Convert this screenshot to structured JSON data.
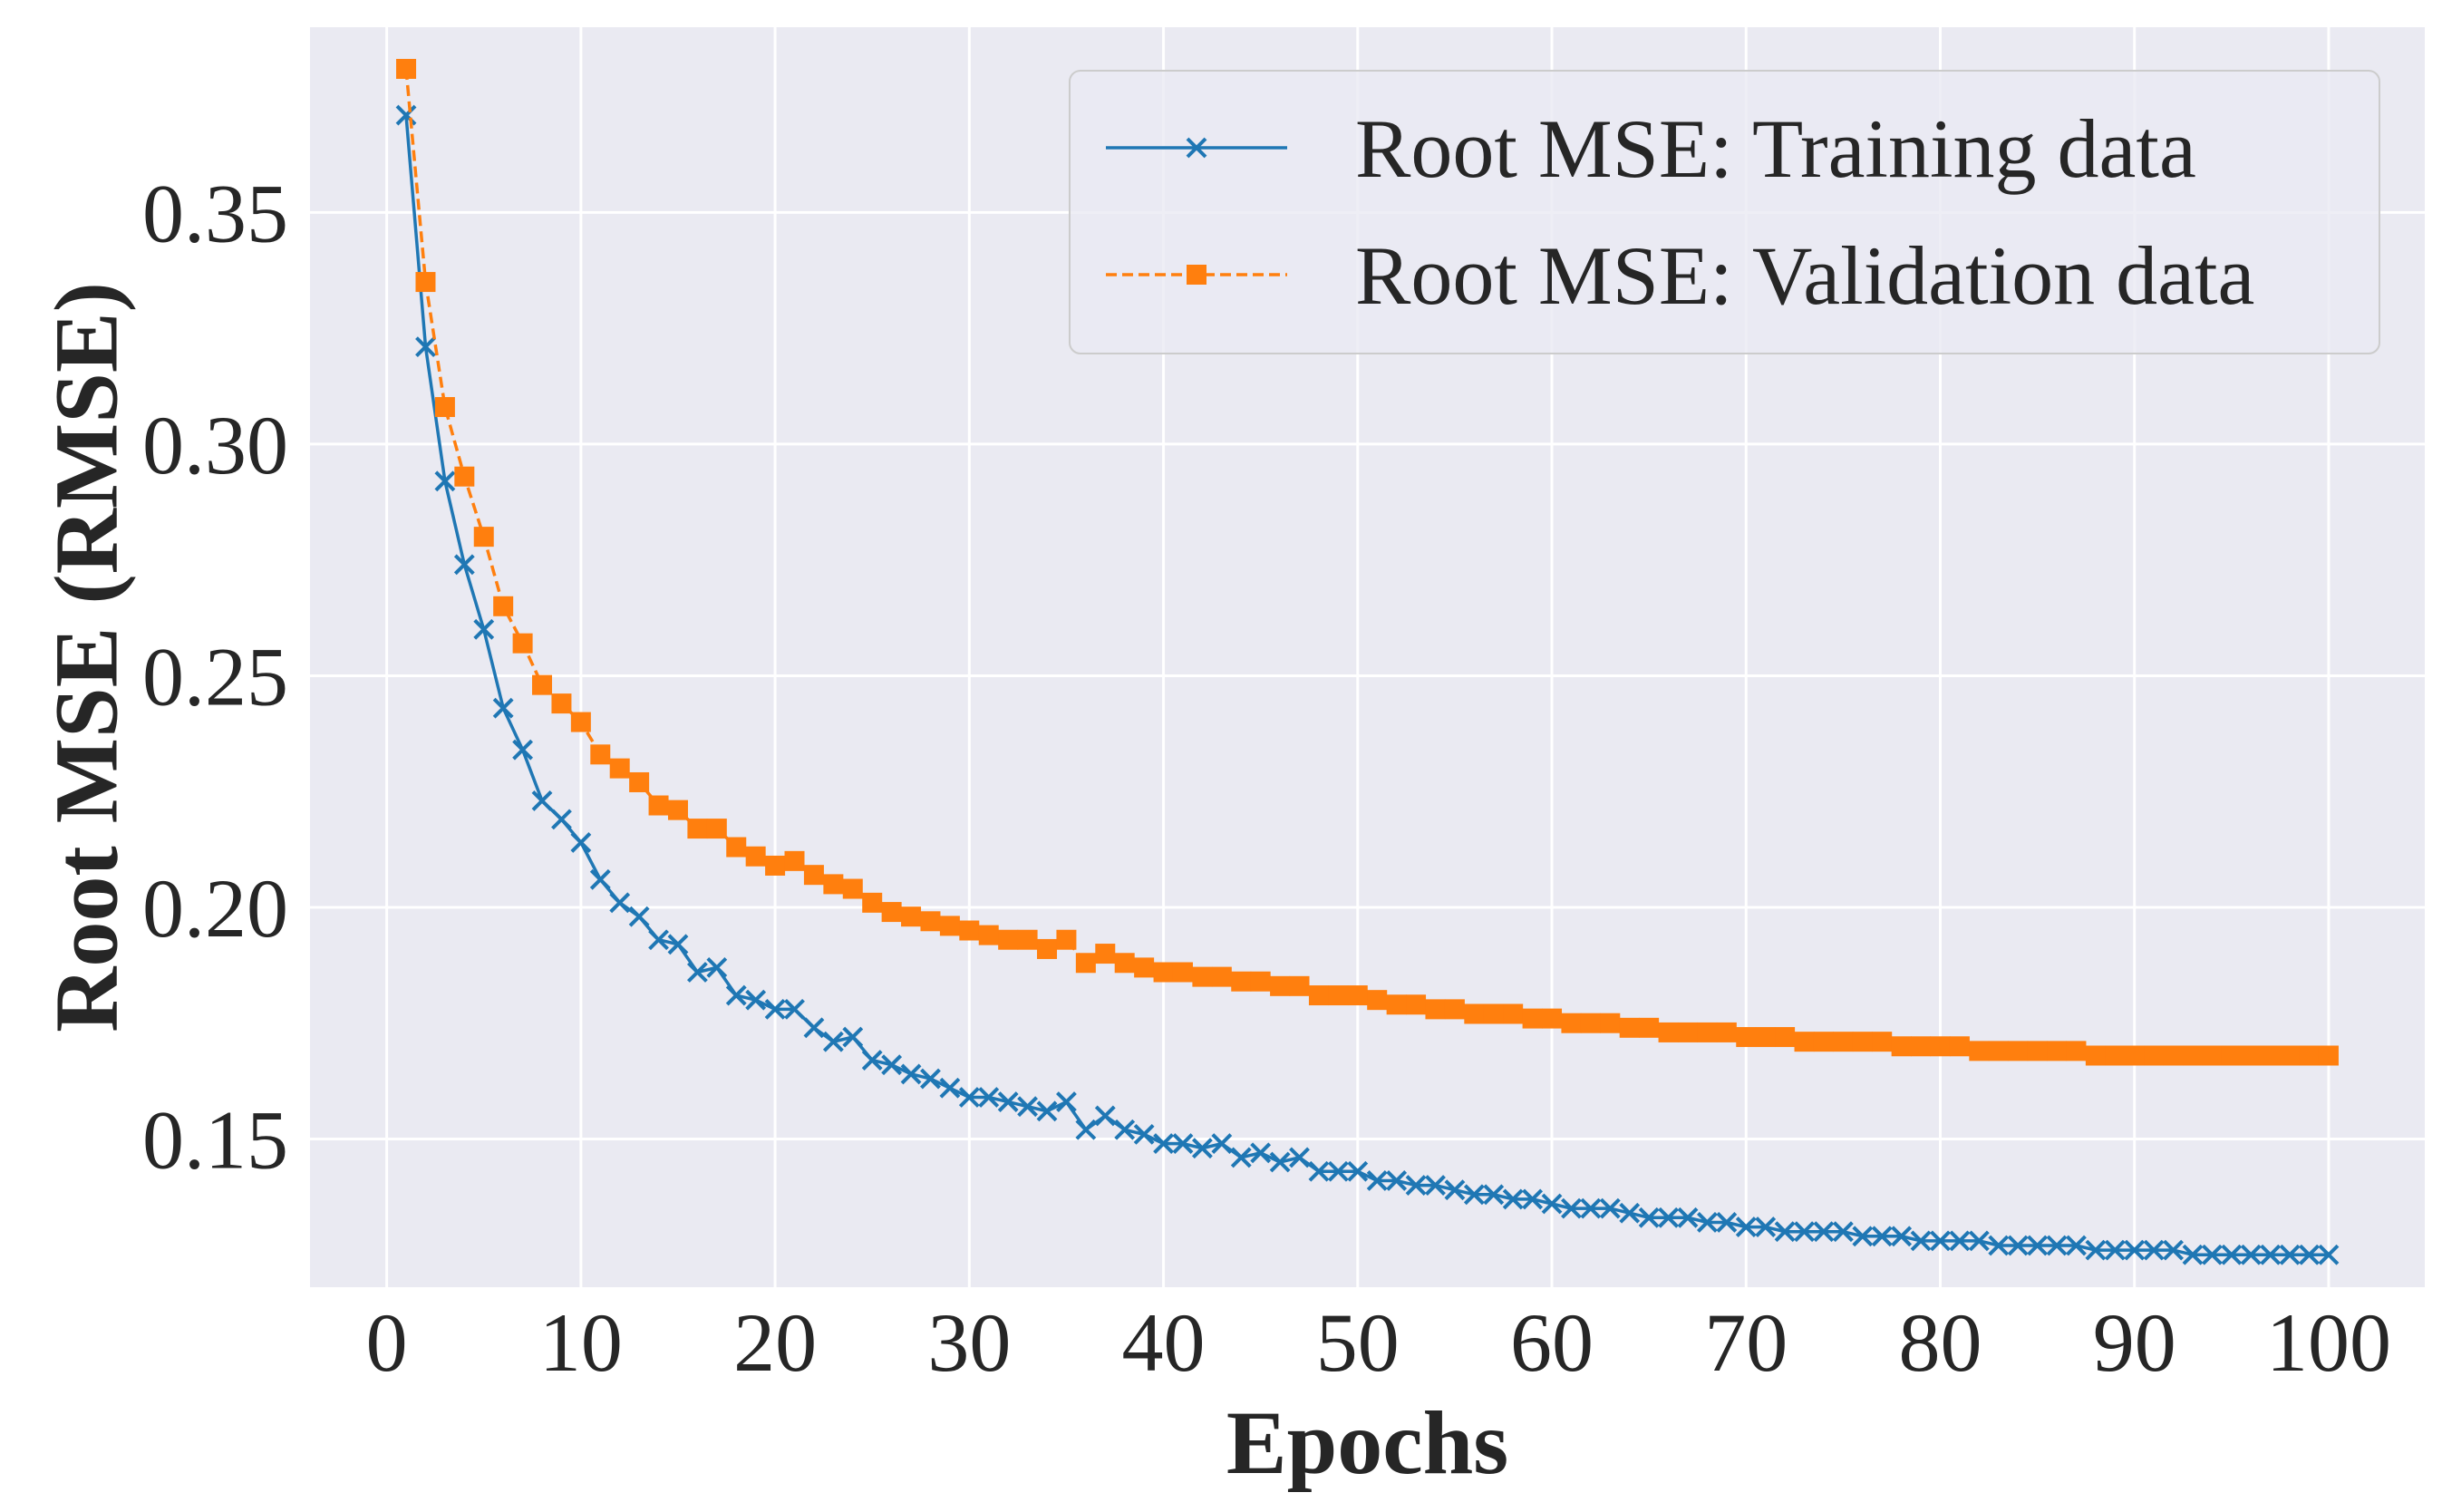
{
  "chart_data": {
    "type": "line",
    "title": "",
    "xlabel": "Epochs",
    "ylabel": "Root MSE (RMSE)",
    "xlim": [
      -3.95,
      104.95
    ],
    "ylim": [
      0.118,
      0.39
    ],
    "x_ticks": [
      0,
      10,
      20,
      30,
      40,
      50,
      60,
      70,
      80,
      90,
      100
    ],
    "x_tick_labels": [
      "0",
      "10",
      "20",
      "30",
      "40",
      "50",
      "60",
      "70",
      "80",
      "90",
      "100"
    ],
    "y_ticks": [
      0.15,
      0.2,
      0.25,
      0.3,
      0.35
    ],
    "y_tick_labels": [
      "0.15",
      "0.20",
      "0.25",
      "0.30",
      "0.35"
    ],
    "grid": true,
    "legend_position": "top-right",
    "background": "#eaeaf2",
    "series": [
      {
        "name": "Root MSE: Training data",
        "color": "#1f77b4",
        "line_style": "solid",
        "marker": "x",
        "x_start": 1,
        "values": [
          0.371,
          0.321,
          0.292,
          0.274,
          0.26,
          0.243,
          0.234,
          0.223,
          0.219,
          0.214,
          0.206,
          0.201,
          0.198,
          0.193,
          0.192,
          0.186,
          0.187,
          0.181,
          0.18,
          0.178,
          0.178,
          0.174,
          0.171,
          0.172,
          0.167,
          0.166,
          0.164,
          0.163,
          0.161,
          0.159,
          0.159,
          0.158,
          0.157,
          0.156,
          0.158,
          0.152,
          0.155,
          0.152,
          0.151,
          0.149,
          0.149,
          0.148,
          0.149,
          0.146,
          0.147,
          0.145,
          0.146,
          0.143,
          0.143,
          0.143,
          0.141,
          0.141,
          0.14,
          0.14,
          0.139,
          0.138,
          0.138,
          0.137,
          0.137,
          0.136,
          0.135,
          0.135,
          0.135,
          0.134,
          0.133,
          0.133,
          0.133,
          0.132,
          0.132,
          0.131,
          0.131,
          0.13,
          0.13,
          0.13,
          0.13,
          0.129,
          0.129,
          0.129,
          0.128,
          0.128,
          0.128,
          0.128,
          0.127,
          0.127,
          0.127,
          0.127,
          0.127,
          0.126,
          0.126,
          0.126,
          0.126,
          0.126,
          0.125,
          0.125,
          0.125,
          0.125,
          0.125,
          0.125,
          0.125,
          0.125
        ]
      },
      {
        "name": "Root MSE: Validation data",
        "color": "#ff7f0e",
        "line_style": "dashed",
        "marker": "square",
        "x_start": 1,
        "values": [
          0.381,
          0.335,
          0.308,
          0.293,
          0.28,
          0.265,
          0.257,
          0.248,
          0.244,
          0.24,
          0.233,
          0.23,
          0.227,
          0.222,
          0.221,
          0.217,
          0.217,
          0.213,
          0.211,
          0.209,
          0.21,
          0.207,
          0.205,
          0.204,
          0.201,
          0.199,
          0.198,
          0.197,
          0.196,
          0.195,
          0.194,
          0.193,
          0.193,
          0.191,
          0.193,
          0.188,
          0.19,
          0.188,
          0.187,
          0.186,
          0.186,
          0.185,
          0.185,
          0.184,
          0.184,
          0.183,
          0.183,
          0.181,
          0.181,
          0.181,
          0.18,
          0.179,
          0.179,
          0.178,
          0.178,
          0.177,
          0.177,
          0.177,
          0.176,
          0.176,
          0.175,
          0.175,
          0.175,
          0.174,
          0.174,
          0.173,
          0.173,
          0.173,
          0.173,
          0.172,
          0.172,
          0.172,
          0.171,
          0.171,
          0.171,
          0.171,
          0.171,
          0.17,
          0.17,
          0.17,
          0.17,
          0.169,
          0.169,
          0.169,
          0.169,
          0.169,
          0.169,
          0.168,
          0.168,
          0.168,
          0.168,
          0.168,
          0.168,
          0.168,
          0.168,
          0.168,
          0.168,
          0.168,
          0.168,
          0.168
        ]
      }
    ]
  }
}
